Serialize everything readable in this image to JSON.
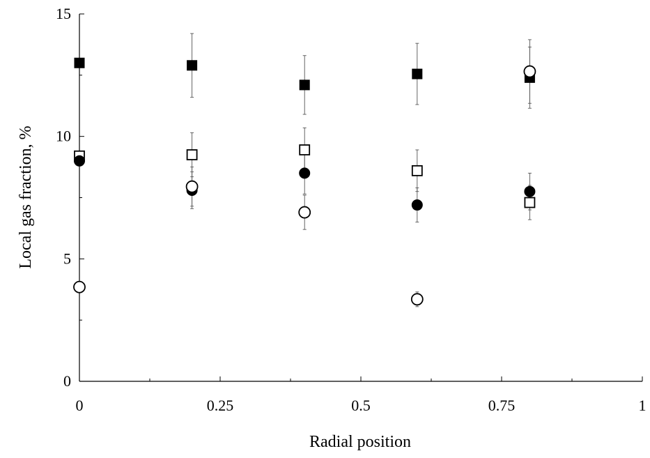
{
  "chart_data": {
    "type": "scatter",
    "xlabel": "Radial position",
    "ylabel": "Local gas fraction, %",
    "xlim": [
      0,
      1
    ],
    "ylim": [
      0,
      15
    ],
    "xticks": [
      "0",
      "0.25",
      "0.5",
      "0.75",
      "1"
    ],
    "yticks": [
      "0",
      "5",
      "10",
      "15"
    ],
    "grid": false,
    "legend": "none",
    "series": [
      {
        "marker": "filled-square",
        "points": [
          {
            "x": 0,
            "y": 13.0
          },
          {
            "x": 0.2,
            "y": 12.9,
            "err": 1.3
          },
          {
            "x": 0.4,
            "y": 12.1,
            "err": 1.2
          },
          {
            "x": 0.6,
            "y": 12.55,
            "err": 1.25
          },
          {
            "x": 0.8,
            "y": 12.4,
            "err": 1.25
          }
        ]
      },
      {
        "marker": "open-square",
        "points": [
          {
            "x": 0,
            "y": 9.2
          },
          {
            "x": 0.2,
            "y": 9.25,
            "err": 0.9
          },
          {
            "x": 0.4,
            "y": 9.45,
            "err": 0.9
          },
          {
            "x": 0.6,
            "y": 8.6,
            "err": 0.85
          },
          {
            "x": 0.8,
            "y": 7.3,
            "err": 0.7
          }
        ]
      },
      {
        "marker": "filled-circle",
        "points": [
          {
            "x": 0,
            "y": 9.0
          },
          {
            "x": 0.2,
            "y": 7.8,
            "err": 0.75
          },
          {
            "x": 0.4,
            "y": 8.5,
            "err": 0.85
          },
          {
            "x": 0.6,
            "y": 7.2,
            "err": 0.7
          },
          {
            "x": 0.8,
            "y": 7.75,
            "err": 0.75
          }
        ]
      },
      {
        "marker": "open-circle",
        "points": [
          {
            "x": 0,
            "y": 3.85
          },
          {
            "x": 0.2,
            "y": 7.95,
            "err": 0.8
          },
          {
            "x": 0.4,
            "y": 6.9,
            "err": 0.7
          },
          {
            "x": 0.6,
            "y": 3.35,
            "err": 0.3
          },
          {
            "x": 0.8,
            "y": 12.65,
            "err": 1.3
          }
        ]
      }
    ]
  }
}
